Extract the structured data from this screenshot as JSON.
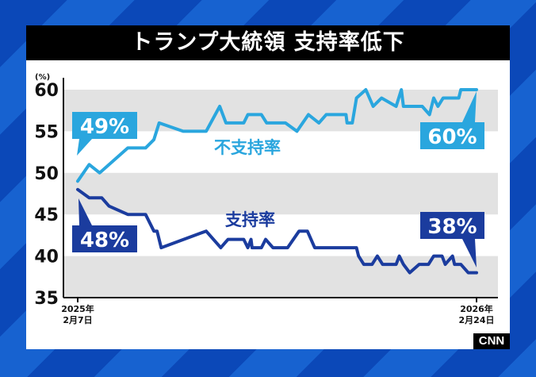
{
  "title": "トランプ大統領 支持率低下",
  "brand": "CNN",
  "colors": {
    "disapproval": "#2aa6de",
    "approval": "#1b3c9e",
    "band": "#e2e2e2"
  },
  "chart_data": {
    "type": "line",
    "title": "トランプ大統領 支持率低下",
    "yunit": "(%)",
    "ylim": [
      35,
      60
    ],
    "yticks": [
      35,
      40,
      45,
      50,
      55,
      60
    ],
    "xlim": [
      "2025-02-07",
      "2026-02-24"
    ],
    "xtick_labels": [
      {
        "date": "2025-02-07",
        "line1": "2025年",
        "line2": "2月7日"
      },
      {
        "date": "2026-02-24",
        "line1": "2026年",
        "line2": "2月24日"
      }
    ],
    "grid": "alternating horizontal bands",
    "series": [
      {
        "name": "不支持率",
        "color": "#2aa6de",
        "start_label": "49%",
        "end_label": "60%",
        "points": [
          [
            "2025-02-07",
            49
          ],
          [
            "2025-02-18",
            51
          ],
          [
            "2025-02-28",
            50
          ],
          [
            "2025-03-27",
            53
          ],
          [
            "2025-04-13",
            53
          ],
          [
            "2025-04-21",
            54
          ],
          [
            "2025-04-26",
            56
          ],
          [
            "2025-05-19",
            55
          ],
          [
            "2025-06-10",
            55
          ],
          [
            "2025-06-23",
            58
          ],
          [
            "2025-06-29",
            56
          ],
          [
            "2025-07-16",
            56
          ],
          [
            "2025-07-20",
            57
          ],
          [
            "2025-08-02",
            57
          ],
          [
            "2025-08-07",
            56
          ],
          [
            "2025-08-25",
            56
          ],
          [
            "2025-09-05",
            55
          ],
          [
            "2025-09-16",
            57
          ],
          [
            "2025-09-26",
            56
          ],
          [
            "2025-10-03",
            57
          ],
          [
            "2025-10-22",
            57
          ],
          [
            "2025-10-23",
            56
          ],
          [
            "2025-10-28",
            56
          ],
          [
            "2025-11-01",
            59
          ],
          [
            "2025-11-10",
            60
          ],
          [
            "2025-11-17",
            58
          ],
          [
            "2025-11-25",
            59
          ],
          [
            "2025-12-09",
            58
          ],
          [
            "2025-12-14",
            60
          ],
          [
            "2025-12-16",
            58
          ],
          [
            "2026-01-03",
            58
          ],
          [
            "2026-01-10",
            57
          ],
          [
            "2026-01-14",
            59
          ],
          [
            "2026-01-18",
            58
          ],
          [
            "2026-01-23",
            59
          ],
          [
            "2026-02-07",
            59
          ],
          [
            "2026-02-09",
            60
          ],
          [
            "2026-02-24",
            60
          ]
        ]
      },
      {
        "name": "支持率",
        "color": "#1b3c9e",
        "start_label": "48%",
        "end_label": "38%",
        "points": [
          [
            "2025-02-07",
            48
          ],
          [
            "2025-02-18",
            47
          ],
          [
            "2025-03-02",
            47
          ],
          [
            "2025-03-09",
            46
          ],
          [
            "2025-03-27",
            45
          ],
          [
            "2025-04-13",
            45
          ],
          [
            "2025-04-21",
            43
          ],
          [
            "2025-04-24",
            43
          ],
          [
            "2025-04-28",
            41
          ],
          [
            "2025-06-10",
            43
          ],
          [
            "2025-06-24",
            41
          ],
          [
            "2025-07-01",
            42
          ],
          [
            "2025-07-16",
            42
          ],
          [
            "2025-07-20",
            41
          ],
          [
            "2025-07-23",
            42
          ],
          [
            "2025-07-24",
            41
          ],
          [
            "2025-08-02",
            41
          ],
          [
            "2025-08-06",
            42
          ],
          [
            "2025-08-13",
            41
          ],
          [
            "2025-08-27",
            41
          ],
          [
            "2025-09-07",
            43
          ],
          [
            "2025-09-15",
            43
          ],
          [
            "2025-09-22",
            41
          ],
          [
            "2025-11-01",
            41
          ],
          [
            "2025-11-03",
            40
          ],
          [
            "2025-11-08",
            39
          ],
          [
            "2025-11-16",
            39
          ],
          [
            "2025-11-21",
            40
          ],
          [
            "2025-11-26",
            39
          ],
          [
            "2025-12-09",
            39
          ],
          [
            "2025-12-12",
            40
          ],
          [
            "2025-12-16",
            39
          ],
          [
            "2025-12-22",
            38
          ],
          [
            "2025-12-31",
            39
          ],
          [
            "2026-01-09",
            39
          ],
          [
            "2026-01-14",
            40
          ],
          [
            "2026-01-22",
            40
          ],
          [
            "2026-01-25",
            39
          ],
          [
            "2026-02-01",
            40
          ],
          [
            "2026-02-03",
            39
          ],
          [
            "2026-02-09",
            39
          ],
          [
            "2026-02-16",
            38
          ],
          [
            "2026-02-24",
            38
          ]
        ]
      }
    ]
  }
}
